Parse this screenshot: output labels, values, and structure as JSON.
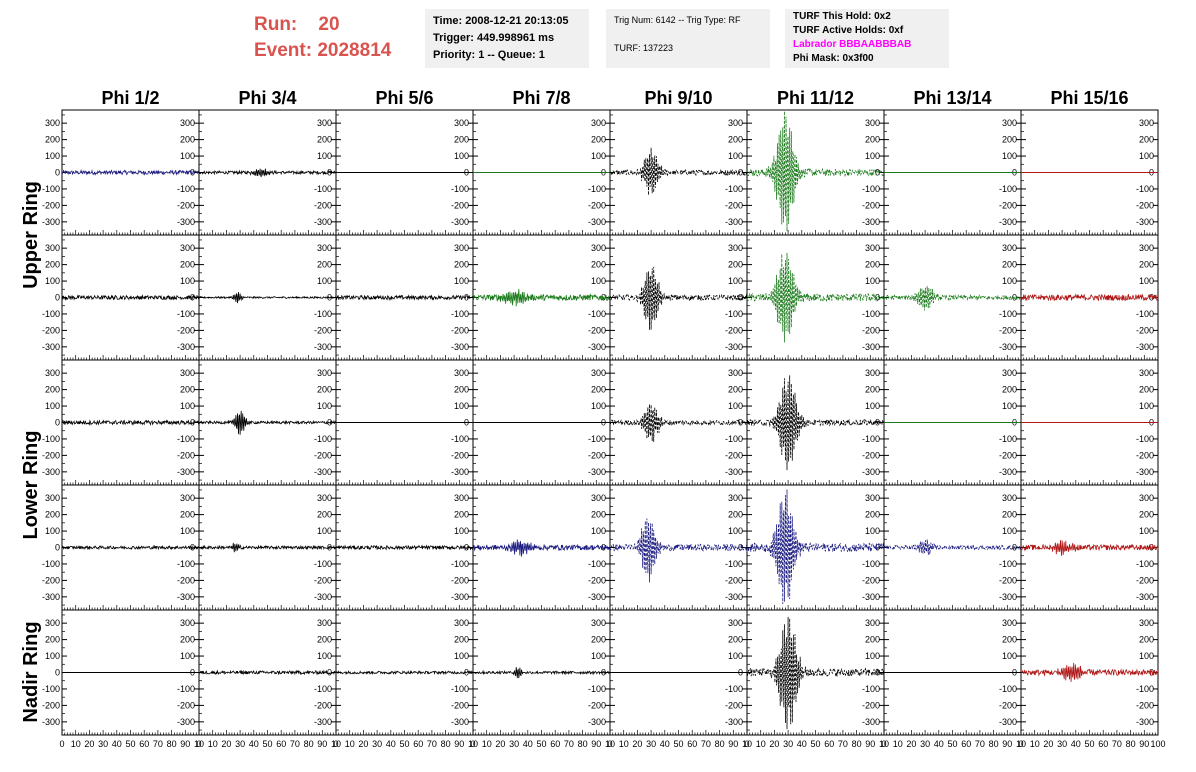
{
  "header": {
    "run_label": "Run:",
    "run_value": "20",
    "event_label": "Event:",
    "event_value": "2028814",
    "time": "Time: 2008-12-21 20:13:05",
    "trigger": "Trigger: 449.998961 ms",
    "priority": "Priority: 1 -- Queue: 1",
    "trig_num": "Trig Num: 6142 -- Trig Type: RF",
    "turf": "TURF: 137223",
    "turf_hold": "TURF This Hold: 0x2",
    "turf_active": "TURF Active Holds: 0xf",
    "labrador": "Labrador BBBAABBBAB",
    "phi_mask": "Phi Mask: 0x3f00"
  },
  "colors": {
    "run_text": "#d9534f",
    "labrador": "#ff00ff",
    "info_bg": "#f0f0f0",
    "trace_black": "#000000",
    "trace_blue": "#1a1a80",
    "trace_green": "#1a7a1a",
    "trace_red": "#b01818"
  },
  "chart_data": {
    "type": "line",
    "columns": [
      "Phi 1/2",
      "Phi 3/4",
      "Phi 5/6",
      "Phi 7/8",
      "Phi 9/10",
      "Phi 11/12",
      "Phi 13/14",
      "Phi 15/16"
    ],
    "row_labels": [
      "Upper Ring",
      "Lower Ring",
      "Nadir Ring"
    ],
    "ylim": [
      -380,
      380
    ],
    "yticks": [
      -300,
      -200,
      -100,
      0,
      100,
      200,
      300
    ],
    "xlim": [
      0,
      100
    ],
    "xticks": [
      0,
      10,
      20,
      30,
      40,
      50,
      60,
      70,
      80,
      90,
      100
    ],
    "xtick_labels_last": [
      "0",
      "10",
      "20",
      "30",
      "40",
      "50",
      "60",
      "70",
      "80",
      "90",
      "100"
    ],
    "xtick_labels_other": [
      "0",
      "10",
      "20",
      "30",
      "40",
      "50",
      "60",
      "70",
      "80",
      "90",
      "10"
    ],
    "grid": false,
    "panels": [
      [
        {
          "color": "blue",
          "style": "solid",
          "noise": 12,
          "burst": 0,
          "center": 45,
          "width": 8
        },
        {
          "color": "black",
          "style": "solid",
          "noise": 9,
          "burst": 25,
          "center": 45,
          "width": 6
        },
        {
          "color": "black",
          "style": "flat",
          "noise": 0,
          "burst": 0,
          "center": 50,
          "width": 5
        },
        {
          "color": "green",
          "style": "flat",
          "noise": 0,
          "burst": 0,
          "center": 50,
          "width": 5
        },
        {
          "color": "black",
          "style": "dash",
          "noise": 16,
          "burst": 140,
          "center": 30,
          "width": 6
        },
        {
          "color": "green",
          "style": "dash",
          "noise": 22,
          "burst": 370,
          "center": 28,
          "width": 7
        },
        {
          "color": "green",
          "style": "flat",
          "noise": 0,
          "burst": 0,
          "center": 50,
          "width": 5
        },
        {
          "color": "red",
          "style": "flat",
          "noise": 0,
          "burst": 0,
          "center": 50,
          "width": 5
        }
      ],
      [
        {
          "color": "black",
          "style": "solid",
          "noise": 12,
          "burst": 0,
          "center": 45,
          "width": 8
        },
        {
          "color": "black",
          "style": "solid",
          "noise": 5,
          "burst": 35,
          "center": 28,
          "width": 3
        },
        {
          "color": "black",
          "style": "solid",
          "noise": 12,
          "burst": 0,
          "center": 45,
          "width": 8
        },
        {
          "color": "green",
          "style": "solid",
          "noise": 18,
          "burst": 45,
          "center": 30,
          "width": 8
        },
        {
          "color": "black",
          "style": "dash",
          "noise": 16,
          "burst": 200,
          "center": 30,
          "width": 6
        },
        {
          "color": "green",
          "style": "dash",
          "noise": 24,
          "burst": 280,
          "center": 28,
          "width": 7
        },
        {
          "color": "green",
          "style": "dash",
          "noise": 14,
          "burst": 70,
          "center": 30,
          "width": 7
        },
        {
          "color": "red",
          "style": "solid",
          "noise": 18,
          "burst": 0,
          "center": 45,
          "width": 8
        }
      ],
      [
        {
          "color": "black",
          "style": "solid",
          "noise": 12,
          "burst": 0,
          "center": 45,
          "width": 8
        },
        {
          "color": "black",
          "style": "solid",
          "noise": 8,
          "burst": 80,
          "center": 30,
          "width": 4
        },
        {
          "color": "black",
          "style": "flat",
          "noise": 0,
          "burst": 0,
          "center": 50,
          "width": 5
        },
        {
          "color": "black",
          "style": "flat",
          "noise": 0,
          "burst": 0,
          "center": 50,
          "width": 5
        },
        {
          "color": "black",
          "style": "dash",
          "noise": 14,
          "burst": 130,
          "center": 30,
          "width": 6
        },
        {
          "color": "black",
          "style": "dash",
          "noise": 18,
          "burst": 300,
          "center": 30,
          "width": 7
        },
        {
          "color": "green",
          "style": "flat",
          "noise": 0,
          "burst": 0,
          "center": 50,
          "width": 5
        },
        {
          "color": "red",
          "style": "flat",
          "noise": 0,
          "burst": 0,
          "center": 50,
          "width": 5
        }
      ],
      [
        {
          "color": "black",
          "style": "solid",
          "noise": 9,
          "burst": 0,
          "center": 45,
          "width": 8
        },
        {
          "color": "black",
          "style": "solid",
          "noise": 9,
          "burst": 30,
          "center": 27,
          "width": 3
        },
        {
          "color": "black",
          "style": "solid",
          "noise": 11,
          "burst": 0,
          "center": 45,
          "width": 8
        },
        {
          "color": "blue",
          "style": "solid",
          "noise": 16,
          "burst": 40,
          "center": 35,
          "width": 8
        },
        {
          "color": "blue",
          "style": "dash",
          "noise": 20,
          "burst": 200,
          "center": 28,
          "width": 6
        },
        {
          "color": "blue",
          "style": "dash",
          "noise": 26,
          "burst": 360,
          "center": 28,
          "width": 7
        },
        {
          "color": "blue",
          "style": "dash",
          "noise": 12,
          "burst": 45,
          "center": 30,
          "width": 6
        },
        {
          "color": "red",
          "style": "solid",
          "noise": 16,
          "burst": 40,
          "center": 30,
          "width": 8
        }
      ],
      [
        {
          "color": "black",
          "style": "flat",
          "noise": 0,
          "burst": 0,
          "center": 50,
          "width": 5
        },
        {
          "color": "black",
          "style": "solid",
          "noise": 10,
          "burst": 0,
          "center": 45,
          "width": 8
        },
        {
          "color": "black",
          "style": "solid",
          "noise": 8,
          "burst": 0,
          "center": 45,
          "width": 8
        },
        {
          "color": "black",
          "style": "solid",
          "noise": 8,
          "burst": 40,
          "center": 33,
          "width": 3
        },
        {
          "color": "black",
          "style": "flat",
          "noise": 0,
          "burst": 0,
          "center": 50,
          "width": 5
        },
        {
          "color": "black",
          "style": "dash",
          "noise": 24,
          "burst": 360,
          "center": 30,
          "width": 7
        },
        {
          "color": "black",
          "style": "flat",
          "noise": 0,
          "burst": 0,
          "center": 50,
          "width": 5
        },
        {
          "color": "red",
          "style": "solid",
          "noise": 18,
          "burst": 50,
          "center": 37,
          "width": 8
        }
      ]
    ]
  }
}
